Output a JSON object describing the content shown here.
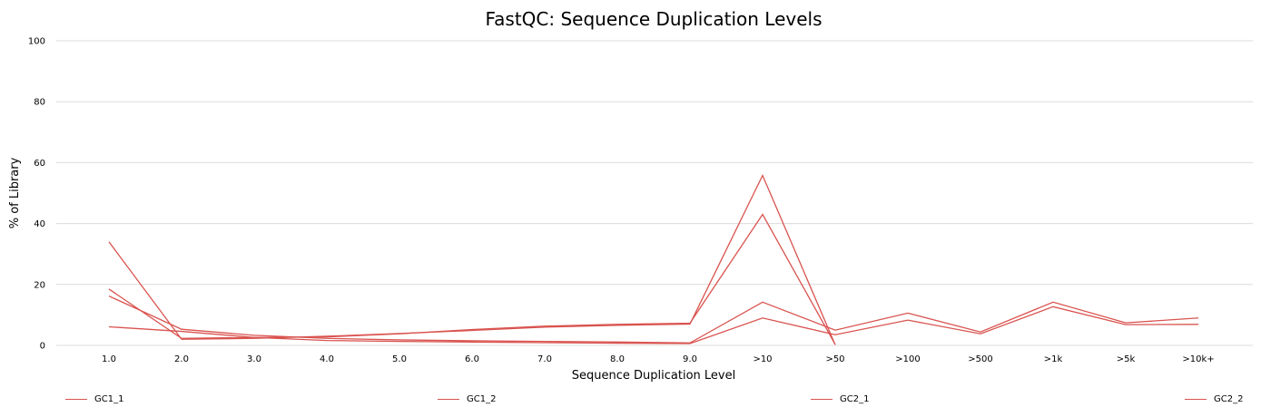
{
  "chart_data": {
    "type": "line",
    "title": "FastQC: Sequence Duplication Levels",
    "xlabel": "Sequence Duplication Level",
    "ylabel": "% of Library",
    "categories": [
      "1.0",
      "2.0",
      "3.0",
      "4.0",
      "5.0",
      "6.0",
      "7.0",
      "8.0",
      "9.0",
      ">10",
      ">50",
      ">100",
      ">500",
      ">1k",
      ">5k",
      ">10k+"
    ],
    "ylim": [
      0,
      100
    ],
    "yticks": [
      0,
      20,
      40,
      60,
      80,
      100
    ],
    "grid": true,
    "legend_position": "bottom",
    "series_color": "#d9534f",
    "series": [
      {
        "name": "GC1_1",
        "values": [
          34.0,
          2.0,
          2.3,
          3.0,
          3.9,
          4.9,
          6.0,
          6.6,
          7.0,
          55.8,
          0.2,
          null,
          null,
          null,
          null,
          null
        ]
      },
      {
        "name": "GC1_2",
        "values": [
          18.5,
          2.3,
          2.6,
          2.8,
          3.8,
          5.2,
          6.3,
          6.9,
          7.3,
          43.0,
          0.3,
          null,
          null,
          null,
          null,
          null
        ]
      },
      {
        "name": "GC2_1",
        "values": [
          16.2,
          5.3,
          3.3,
          2.3,
          1.8,
          1.5,
          1.3,
          1.1,
          0.8,
          14.2,
          5.0,
          10.6,
          4.4,
          14.2,
          7.4,
          9.0
        ]
      },
      {
        "name": "GC2_2",
        "values": [
          6.1,
          4.6,
          2.6,
          1.6,
          1.3,
          1.1,
          0.9,
          0.7,
          0.6,
          9.0,
          3.5,
          8.3,
          3.8,
          12.7,
          6.8,
          6.9
        ]
      }
    ]
  }
}
